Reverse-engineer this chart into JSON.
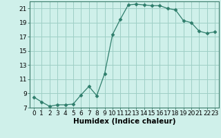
{
  "x": [
    0,
    1,
    2,
    3,
    4,
    5,
    6,
    7,
    8,
    9,
    10,
    11,
    12,
    13,
    14,
    15,
    16,
    17,
    18,
    19,
    20,
    21,
    22,
    23
  ],
  "y": [
    8.5,
    7.8,
    7.2,
    7.4,
    7.4,
    7.5,
    8.8,
    10.0,
    8.7,
    11.8,
    17.3,
    19.5,
    21.5,
    21.6,
    21.5,
    21.4,
    21.4,
    21.0,
    20.8,
    19.3,
    19.0,
    17.8,
    17.5,
    17.7
  ],
  "xlabel": "Humidex (Indice chaleur)",
  "line_color": "#2e7d6b",
  "marker": "D",
  "marker_size": 2.5,
  "bg_color": "#cff0ea",
  "grid_color": "#9ecec5",
  "ylim": [
    7,
    22
  ],
  "xlim": [
    -0.5,
    23.5
  ],
  "yticks": [
    7,
    9,
    11,
    13,
    15,
    17,
    19,
    21
  ],
  "xticks": [
    0,
    1,
    2,
    3,
    4,
    5,
    6,
    7,
    8,
    9,
    10,
    11,
    12,
    13,
    14,
    15,
    16,
    17,
    18,
    19,
    20,
    21,
    22,
    23
  ],
  "tick_fontsize": 6.5,
  "xlabel_fontsize": 7.5
}
